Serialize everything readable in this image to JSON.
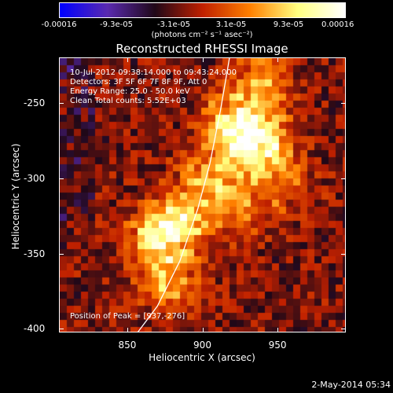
{
  "chart_data": {
    "type": "heatmap",
    "title": "Reconstructed RHESSI Image",
    "xlabel": "Heliocentric X (arcsec)",
    "ylabel": "Heliocentric Y (arcsec)",
    "xlim": [
      805,
      995
    ],
    "ylim": [
      -402,
      -220
    ],
    "x_ticks": [
      "850",
      "900",
      "950"
    ],
    "y_ticks": [
      "-250",
      "-300",
      "-350",
      "-400"
    ],
    "x_tick_values": [
      850,
      900,
      950
    ],
    "y_tick_values": [
      -250,
      -300,
      -350,
      -400
    ],
    "colorbar": {
      "tick_labels": [
        "-0.00016",
        "-9.3e-05",
        "-3.1e-05",
        "3.1e-05",
        "9.3e-05",
        "0.00016"
      ],
      "units_label": "(photons cm⁻² s⁻¹ asec⁻²)",
      "range": [
        -0.00016,
        0.00016
      ]
    },
    "annotations": [
      "10-Jul-2012 09:38:14.000 to 09:43:24.000",
      "Detectors: 3F 5F 6F 7F 8F 9F, Att 0",
      "Energy Range: 25.0 - 50.0 keV",
      "Clean    Total counts: 5.52E+03"
    ],
    "peak_label": "Position of Peak = [937,-276]",
    "peak": [
      937,
      -276
    ],
    "sources": [
      {
        "x": 937,
        "y": -276,
        "intensity": 0.00016
      },
      {
        "x": 920,
        "y": -265,
        "intensity": 0.00013
      },
      {
        "x": 905,
        "y": -300,
        "intensity": 0.0001
      },
      {
        "x": 885,
        "y": -330,
        "intensity": 0.00011
      },
      {
        "x": 870,
        "y": -340,
        "intensity": 0.00012
      },
      {
        "x": 878,
        "y": -370,
        "intensity": 0.0001
      },
      {
        "x": 940,
        "y": -235,
        "intensity": 9e-05
      },
      {
        "x": 955,
        "y": -305,
        "intensity": 6e-05
      },
      {
        "x": 925,
        "y": -320,
        "intensity": 7e-05
      }
    ],
    "limb_curve": [
      [
        855,
        -405
      ],
      [
        870,
        -385
      ],
      [
        885,
        -355
      ],
      [
        897,
        -320
      ],
      [
        905,
        -290
      ],
      [
        912,
        -255
      ],
      [
        918,
        -220
      ]
    ],
    "colors": {
      "colormap": [
        "#0000ff",
        "#5a2ab0",
        "#200818",
        "#c02000",
        "#ff8000",
        "#ffff80",
        "#ffffff"
      ]
    }
  },
  "timestamp": "2-May-2014 05:34"
}
